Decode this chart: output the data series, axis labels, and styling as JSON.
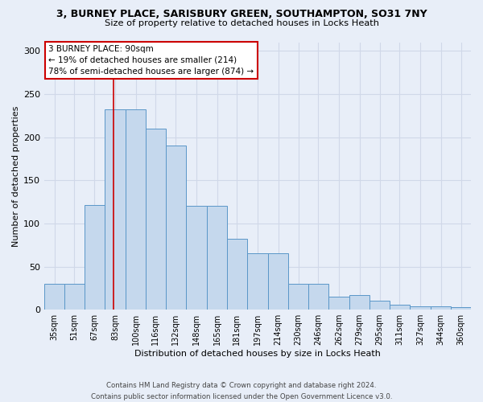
{
  "title_line1": "3, BURNEY PLACE, SARISBURY GREEN, SOUTHAMPTON, SO31 7NY",
  "title_line2": "Size of property relative to detached houses in Locks Heath",
  "xlabel": "Distribution of detached houses by size in Locks Heath",
  "ylabel": "Number of detached properties",
  "bin_edges": [
    35,
    51,
    67,
    83,
    100,
    116,
    132,
    148,
    165,
    181,
    197,
    214,
    230,
    246,
    262,
    279,
    295,
    311,
    327,
    344,
    360,
    376
  ],
  "bar_heights": [
    30,
    30,
    121,
    232,
    232,
    210,
    190,
    120,
    120,
    82,
    65,
    65,
    30,
    30,
    15,
    17,
    10,
    6,
    4,
    4,
    3
  ],
  "bar_color": "#c5d8ed",
  "bar_edge_color": "#5a96c8",
  "annotation_text": "3 BURNEY PLACE: 90sqm\n← 19% of detached houses are smaller (214)\n78% of semi-detached houses are larger (874) →",
  "annotation_box_color": "white",
  "annotation_box_edge_color": "#cc0000",
  "property_line_x": 90,
  "property_line_color": "#cc0000",
  "ylim": [
    0,
    310
  ],
  "yticks": [
    0,
    50,
    100,
    150,
    200,
    250,
    300
  ],
  "tick_labels": [
    "35sqm",
    "51sqm",
    "67sqm",
    "83sqm",
    "100sqm",
    "116sqm",
    "132sqm",
    "148sqm",
    "165sqm",
    "181sqm",
    "197sqm",
    "214sqm",
    "230sqm",
    "246sqm",
    "262sqm",
    "279sqm",
    "295sqm",
    "311sqm",
    "327sqm",
    "344sqm",
    "360sqm"
  ],
  "footer_line1": "Contains HM Land Registry data © Crown copyright and database right 2024.",
  "footer_line2": "Contains public sector information licensed under the Open Government Licence v3.0.",
  "bg_color": "#e8eef8",
  "grid_color": "#d0d8e8"
}
